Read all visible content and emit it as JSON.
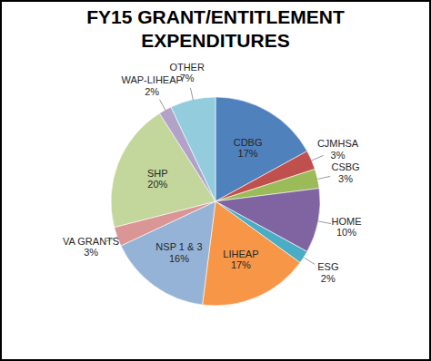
{
  "chart_data": {
    "type": "pie",
    "title": "FY15 GRANT/ENTITLEMENT EXPENDITURES",
    "categories": [
      "CDBG",
      "CJMHSA",
      "CSBG",
      "HOME",
      "ESG",
      "LIHEAP",
      "NSP 1 & 3",
      "VA GRANTS",
      "SHP",
      "WAP-LIHEAP",
      "OTHER"
    ],
    "values": [
      17,
      3,
      3,
      10,
      2,
      17,
      16,
      3,
      20,
      2,
      7
    ],
    "value_labels": [
      "17%",
      "3%",
      "3%",
      "10%",
      "2%",
      "17%",
      "16%",
      "3%",
      "20%",
      "2%",
      "7%"
    ],
    "colors": [
      "#4f81bd",
      "#c0504d",
      "#9bbb59",
      "#8064a2",
      "#4bacc6",
      "#f79646",
      "#95b3d7",
      "#d99694",
      "#c3d69b",
      "#b3a2c7",
      "#93cddd"
    ],
    "data_labels": true
  }
}
